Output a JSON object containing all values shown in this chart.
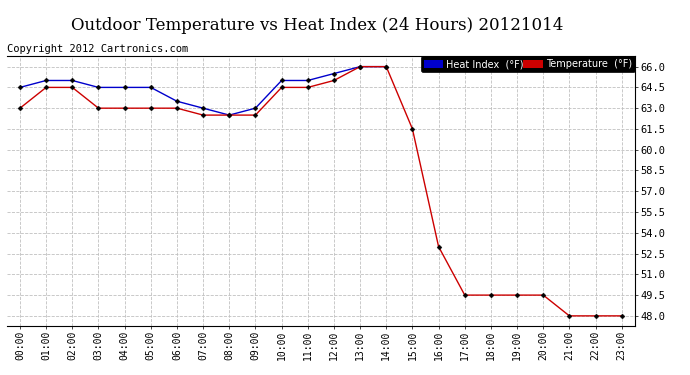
{
  "title": "Outdoor Temperature vs Heat Index (24 Hours) 20121014",
  "copyright": "Copyright 2012 Cartronics.com",
  "ylim": [
    47.25,
    66.75
  ],
  "yticks": [
    48.0,
    49.5,
    51.0,
    52.5,
    54.0,
    55.5,
    57.0,
    58.5,
    60.0,
    61.5,
    63.0,
    64.5,
    66.0
  ],
  "hours": [
    "00:00",
    "01:00",
    "02:00",
    "03:00",
    "04:00",
    "05:00",
    "06:00",
    "07:00",
    "08:00",
    "09:00",
    "10:00",
    "11:00",
    "12:00",
    "13:00",
    "14:00",
    "15:00",
    "16:00",
    "17:00",
    "18:00",
    "19:00",
    "20:00",
    "21:00",
    "22:00",
    "23:00"
  ],
  "heat_index": [
    64.5,
    65.0,
    65.0,
    64.5,
    64.5,
    64.5,
    63.5,
    63.0,
    62.5,
    63.0,
    65.0,
    65.0,
    65.5,
    66.0,
    66.0,
    null,
    null,
    null,
    null,
    null,
    null,
    null,
    null,
    null
  ],
  "temperature": [
    63.0,
    64.5,
    64.5,
    63.0,
    63.0,
    63.0,
    63.0,
    62.5,
    62.5,
    62.5,
    64.5,
    64.5,
    65.0,
    66.0,
    66.0,
    61.5,
    53.0,
    49.5,
    49.5,
    49.5,
    49.5,
    48.0,
    48.0,
    48.0
  ],
  "heat_index_color": "#0000cc",
  "temperature_color": "#cc0000",
  "bg_color": "#ffffff",
  "grid_color": "#c0c0c0",
  "title_fontsize": 12,
  "copyright_fontsize": 7.5,
  "legend_hi_bg": "#0000cc",
  "legend_temp_bg": "#cc0000",
  "legend_text_color": "#ffffff",
  "legend_label_hi": "Heat Index  (°F)",
  "legend_label_temp": "Temperature  (°F)"
}
